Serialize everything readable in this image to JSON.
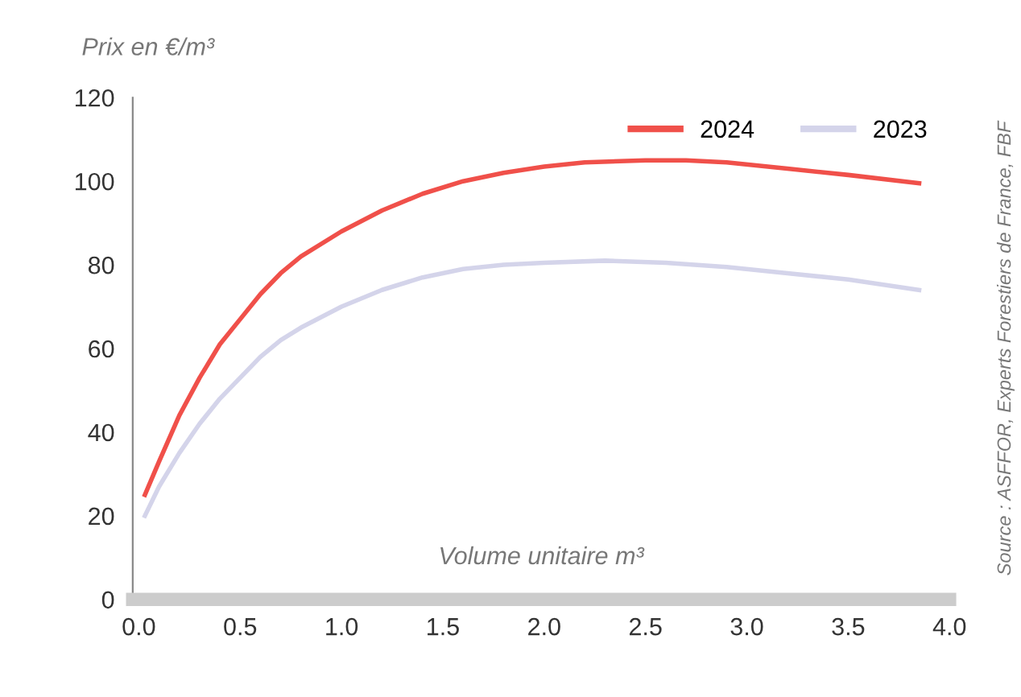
{
  "chart_data": {
    "type": "line",
    "ylabel": "Prix en €/m³",
    "xlabel": "Volume unitaire m³",
    "annotations": [
      "Source : ASFFOR, Experts Forestiers de France, FBF"
    ],
    "xlim": [
      -0.03,
      4.0
    ],
    "xticks": [
      {
        "value": 0,
        "label": "0.0"
      },
      0.5,
      {
        "value": 1,
        "label": "1.0"
      },
      1.5,
      {
        "value": 2,
        "label": "2.0"
      },
      2.5,
      {
        "value": 3,
        "label": "3.0"
      },
      3.5,
      {
        "value": 4,
        "label": "4.0"
      }
    ],
    "ylim": [
      0,
      120
    ],
    "yticks": [
      0,
      20,
      40,
      60,
      80,
      100,
      120
    ],
    "grid": false,
    "legend": "top right",
    "marker": "none",
    "line_style": "solid",
    "series": [
      {
        "name": "2024",
        "color": "#f0504a",
        "x": [
          0.03,
          0.1,
          0.2,
          0.3,
          0.4,
          0.5,
          0.6,
          0.7,
          0.8,
          1.0,
          1.2,
          1.4,
          1.6,
          1.8,
          2.0,
          2.2,
          2.5,
          2.7,
          2.9,
          3.2,
          3.5,
          3.85
        ],
        "values": [
          25,
          33,
          44,
          53,
          61,
          67,
          73,
          78,
          82,
          88,
          93,
          97,
          100,
          102,
          103.5,
          104.5,
          105,
          105,
          104.5,
          103,
          101.5,
          99.5
        ]
      },
      {
        "name": "2023",
        "color": "#d4d4ea",
        "x": [
          0.03,
          0.1,
          0.2,
          0.3,
          0.4,
          0.5,
          0.6,
          0.7,
          0.8,
          1.0,
          1.2,
          1.4,
          1.6,
          1.8,
          2.0,
          2.3,
          2.6,
          2.9,
          3.2,
          3.5,
          3.85
        ],
        "values": [
          20,
          27,
          35,
          42,
          48,
          53,
          58,
          62,
          65,
          70,
          74,
          77,
          79,
          80,
          80.5,
          81,
          80.5,
          79.5,
          78,
          76.5,
          74
        ]
      }
    ]
  }
}
